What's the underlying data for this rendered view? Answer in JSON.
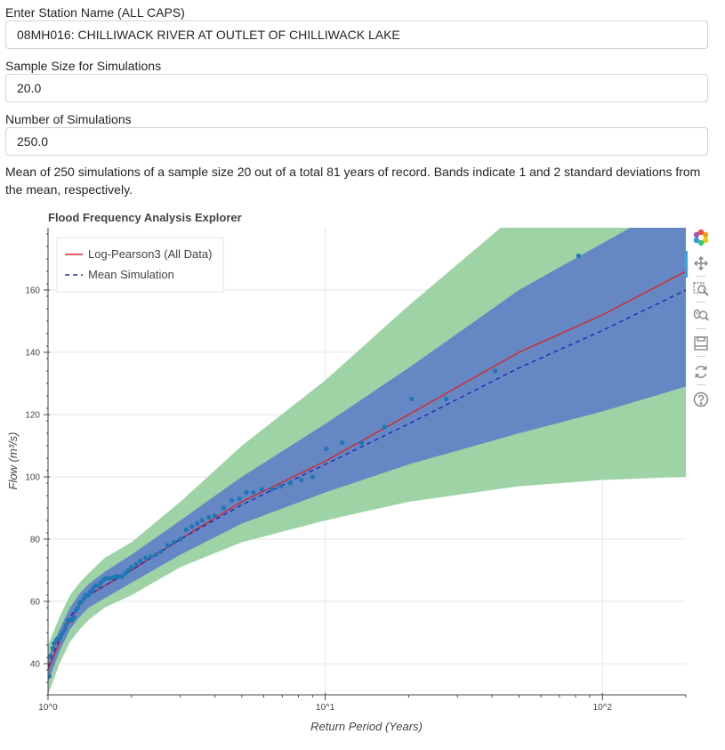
{
  "form": {
    "station_label": "Enter Station Name (ALL CAPS)",
    "station_value": "08MH016: CHILLIWACK RIVER AT OUTLET OF CHILLIWACK LAKE",
    "sample_label": "Sample Size for Simulations",
    "sample_value": "20.0",
    "nsims_label": "Number of Simulations",
    "nsims_value": "250.0"
  },
  "description": "Mean of 250 simulations of a sample size 20 out of a total 81 years of record. Bands indicate 1 and 2 standard deviations from the mean, respectively.",
  "toolbar": {
    "icons": [
      "bokeh-logo-icon",
      "pan-icon",
      "box-zoom-icon",
      "wheel-zoom-icon",
      "save-icon",
      "reset-icon",
      "help-icon"
    ]
  },
  "chart_data": {
    "type": "line",
    "title": "Flood Frequency Analysis Explorer",
    "xlabel": "Return Period (Years)",
    "ylabel": "Flow (m³/s)",
    "x_scale": "log",
    "xlim": [
      1,
      200
    ],
    "ylim": [
      30,
      180
    ],
    "x_ticks": [
      1,
      10,
      100
    ],
    "x_tick_labels": [
      "10^0",
      "10^1",
      "10^2"
    ],
    "y_ticks": [
      40,
      60,
      80,
      100,
      120,
      140,
      160
    ],
    "grid": true,
    "legend_position": "top-left",
    "colors": {
      "lp3": "#d62728",
      "mean": "#1f2bb4",
      "band1": "#6587c4",
      "band2": "#9ed3a6",
      "points": "#1f77b4"
    },
    "series": [
      {
        "name": "Log-Pearson3 (All Data)",
        "style": "solid",
        "x": [
          1.0,
          1.1,
          1.2,
          1.3,
          1.4,
          1.6,
          2.0,
          3.0,
          5.0,
          10,
          20,
          50,
          100,
          200
        ],
        "y": [
          38,
          47,
          54,
          59,
          62,
          65,
          70,
          80,
          92,
          105,
          120,
          140,
          152,
          166
        ]
      },
      {
        "name": "Mean Simulation",
        "style": "dashed",
        "x": [
          1.0,
          1.1,
          1.2,
          1.3,
          1.4,
          1.6,
          2.0,
          3.0,
          5.0,
          10,
          20,
          50,
          100,
          200
        ],
        "y": [
          39,
          48,
          55,
          59.5,
          62,
          65,
          70,
          80,
          91,
          104,
          117,
          135,
          147,
          160
        ]
      }
    ],
    "bands": [
      {
        "level": "2 standard deviations",
        "x": [
          1.0,
          1.1,
          1.2,
          1.3,
          1.4,
          1.6,
          2.0,
          3.0,
          5.0,
          10,
          20,
          50,
          100,
          200
        ],
        "upper": [
          46,
          55,
          62,
          66,
          69,
          74,
          79,
          92,
          110,
          131,
          155,
          185,
          205,
          225
        ],
        "lower": [
          30,
          40,
          47,
          51,
          54,
          58,
          62,
          71,
          79,
          86,
          92,
          97,
          99,
          100
        ]
      },
      {
        "level": "1 standard deviation",
        "x": [
          1.0,
          1.1,
          1.2,
          1.3,
          1.4,
          1.6,
          2.0,
          3.0,
          5.0,
          10,
          20,
          50,
          100,
          200
        ],
        "upper": [
          42,
          51,
          58,
          62.5,
          65.5,
          69.5,
          75,
          86,
          100,
          117,
          135,
          160,
          175,
          190
        ],
        "lower": [
          34,
          44,
          51,
          55,
          58,
          61,
          66,
          75,
          85,
          95,
          104,
          114,
          121,
          129
        ]
      }
    ],
    "observed": {
      "x": [
        1.01,
        1.02,
        1.04,
        1.05,
        1.07,
        1.08,
        1.1,
        1.11,
        1.13,
        1.15,
        1.16,
        1.18,
        1.2,
        1.22,
        1.24,
        1.26,
        1.28,
        1.3,
        1.32,
        1.35,
        1.37,
        1.4,
        1.42,
        1.45,
        1.48,
        1.52,
        1.55,
        1.59,
        1.62,
        1.66,
        1.7,
        1.75,
        1.8,
        1.85,
        1.9,
        1.95,
        2.0,
        2.08,
        2.15,
        2.25,
        2.35,
        2.45,
        2.55,
        2.7,
        2.85,
        3.0,
        3.15,
        3.3,
        3.45,
        3.6,
        3.8,
        4.0,
        4.3,
        4.6,
        4.9,
        5.2,
        5.5,
        5.9,
        6.4,
        6.9,
        7.5,
        8.2,
        9.0,
        10.1,
        11.5,
        13.5,
        16.4,
        20.5,
        27.3,
        41.0,
        82.0
      ],
      "y": [
        36,
        42.5,
        45,
        46.5,
        47.5,
        48,
        48,
        49,
        50,
        51,
        52.5,
        54,
        54,
        54,
        55,
        57,
        58,
        59.5,
        60,
        61,
        62,
        62,
        63,
        64,
        65,
        65,
        66,
        67,
        67.5,
        67.5,
        67.5,
        68,
        68,
        68,
        69,
        70,
        71,
        72,
        73,
        74,
        74.5,
        75,
        76,
        78,
        79,
        80,
        83,
        84,
        85,
        86,
        87,
        87.5,
        90,
        92.5,
        93,
        95,
        95,
        96,
        96,
        97,
        98,
        99,
        100,
        109,
        111,
        111,
        116,
        125,
        125,
        134,
        171
      ]
    }
  }
}
